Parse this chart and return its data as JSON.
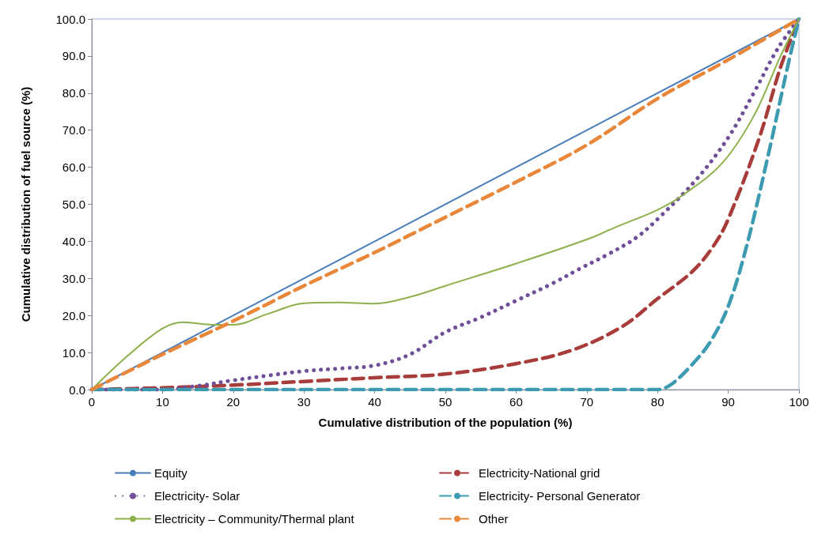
{
  "chart_data": {
    "type": "line",
    "xlabel": "Cumulative distribution of the population (%)",
    "ylabel": "Cumulative distribution of fuel source (%)",
    "xlim": [
      0,
      100
    ],
    "xticks": [
      0,
      10,
      20,
      30,
      40,
      50,
      60,
      70,
      80,
      90,
      100
    ],
    "ylim": [
      0,
      100
    ],
    "yticks": [
      {
        "value": 0,
        "label": "0.0"
      },
      {
        "value": 10,
        "label": "10.0"
      },
      {
        "value": 20,
        "label": "20.0"
      },
      {
        "value": 30,
        "label": "30.0"
      },
      {
        "value": 40,
        "label": "40.0"
      },
      {
        "value": 50,
        "label": "50.0"
      },
      {
        "value": 60,
        "label": "60.0"
      },
      {
        "value": 70,
        "label": "70.0"
      },
      {
        "value": 80,
        "label": "80.0"
      },
      {
        "value": 90,
        "label": "90.0"
      },
      {
        "value": 100,
        "label": "100.0"
      }
    ],
    "grid": false,
    "legend": "bottom",
    "marker": "none",
    "series": [
      {
        "name": "Equity",
        "color": "#4a7ebb",
        "line_style": "solid",
        "x": [
          0,
          100
        ],
        "values": [
          0,
          100
        ]
      },
      {
        "name": "Electricity-National grid",
        "color": "#a83c3a",
        "line_style": "dashed",
        "x": [
          0,
          10,
          20,
          30,
          40,
          50,
          60,
          68,
          75,
          80,
          85,
          88,
          90,
          94.4,
          97.4,
          100
        ],
        "values": [
          0,
          0.5,
          1.2,
          2.2,
          3.2,
          4.2,
          7,
          10.7,
          17,
          24.5,
          32,
          39,
          46,
          68,
          87,
          100
        ]
      },
      {
        "name": "Electricity- Solar",
        "color": "#6f4f98",
        "line_style": "dotted",
        "x": [
          0,
          10,
          15,
          20,
          25,
          30,
          35,
          40,
          45,
          50,
          55,
          60,
          65,
          69,
          73,
          77,
          80,
          85.5,
          90,
          93.6,
          97,
          100
        ],
        "values": [
          0,
          0,
          1,
          2.5,
          3.8,
          5,
          5.7,
          6.5,
          9.5,
          15.5,
          19.5,
          24,
          28.5,
          32.6,
          36.5,
          41,
          46,
          56.7,
          68,
          80,
          92,
          100
        ]
      },
      {
        "name": "Electricity- Personal Generator",
        "color": "#3c9bb0",
        "line_style": "dashed",
        "x": [
          0,
          80,
          82,
          85,
          87.5,
          90,
          92.5,
          95.5,
          98.5,
          100
        ],
        "values": [
          0,
          0,
          1.5,
          7,
          13,
          22.5,
          38,
          62,
          88,
          100
        ]
      },
      {
        "name": "Electricity – Community/Thermal plant",
        "color": "#8db04a",
        "line_style": "solid",
        "x": [
          0,
          5,
          10,
          13,
          17,
          20,
          25,
          30,
          35,
          40,
          45,
          50,
          60,
          70,
          74.3,
          80,
          83.6,
          89.1,
          93.6,
          97.4,
          100
        ],
        "values": [
          0,
          9,
          16.5,
          18.2,
          17.5,
          17.5,
          20.5,
          23.3,
          23.5,
          23.2,
          25,
          28,
          34,
          40.5,
          44,
          48.5,
          52.5,
          61,
          73.8,
          90,
          100
        ]
      },
      {
        "name": "Other",
        "color": "#e8873a",
        "line_style": "dashed",
        "x": [
          0,
          10,
          20,
          30,
          40,
          50,
          60,
          70,
          80,
          90,
          100
        ],
        "values": [
          0,
          9.5,
          18.5,
          28,
          37,
          46.5,
          56,
          66,
          78.5,
          89,
          100
        ]
      }
    ]
  }
}
